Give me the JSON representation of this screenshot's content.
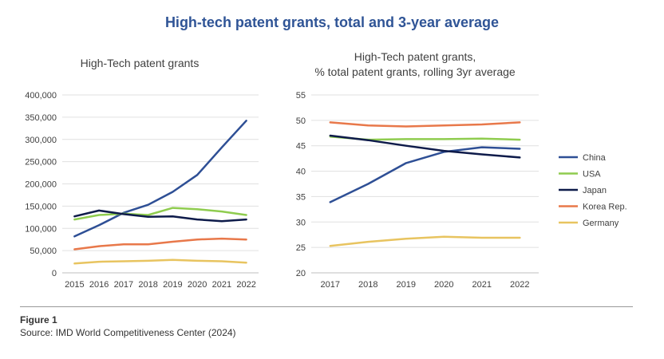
{
  "title": "High-tech patent grants, total and 3-year average",
  "colors": {
    "China": "#2e4f95",
    "USA": "#8fcc4f",
    "Japan": "#0e1b4a",
    "Korea Rep.": "#e8784a",
    "Germany": "#e8c460"
  },
  "legend": [
    "China",
    "USA",
    "Japan",
    "Korea Rep.",
    "Germany"
  ],
  "chart_data": [
    {
      "type": "line",
      "title": "High-Tech patent grants",
      "x": [
        "2015",
        "2016",
        "2017",
        "2018",
        "2019",
        "2020",
        "2021",
        "2022"
      ],
      "ylim": [
        0,
        400000
      ],
      "yticks": [
        "0",
        "50,000",
        "100,000",
        "150,000",
        "200,000",
        "250,000",
        "300,000",
        "350,000",
        "400,000"
      ],
      "grid": true,
      "series": [
        {
          "name": "China",
          "values": [
            82000,
            107000,
            135000,
            153000,
            182000,
            220000,
            282000,
            342000
          ]
        },
        {
          "name": "USA",
          "values": [
            120000,
            130000,
            133000,
            130000,
            146000,
            143000,
            138000,
            130000
          ]
        },
        {
          "name": "Japan",
          "values": [
            127000,
            140000,
            132000,
            126000,
            127000,
            120000,
            116000,
            120000
          ]
        },
        {
          "name": "Korea Rep.",
          "values": [
            53000,
            60000,
            64000,
            64000,
            70000,
            75000,
            77000,
            75000
          ]
        },
        {
          "name": "Germany",
          "values": [
            21000,
            25000,
            26000,
            27000,
            29000,
            27000,
            26000,
            23000
          ]
        }
      ]
    },
    {
      "type": "line",
      "title_lines": [
        "High-Tech patent grants,",
        "% total patent grants, rolling 3yr average"
      ],
      "x": [
        "2017",
        "2018",
        "2019",
        "2020",
        "2021",
        "2022"
      ],
      "ylim": [
        20,
        55
      ],
      "yticks": [
        "20",
        "25",
        "30",
        "35",
        "40",
        "45",
        "50",
        "55"
      ],
      "grid": true,
      "legend_position": "right",
      "series": [
        {
          "name": "China",
          "values": [
            33.9,
            37.5,
            41.6,
            43.8,
            44.7,
            44.4
          ]
        },
        {
          "name": "USA",
          "values": [
            46.8,
            46.2,
            46.3,
            46.3,
            46.4,
            46.2
          ]
        },
        {
          "name": "Japan",
          "values": [
            47.0,
            46.1,
            45.0,
            44.0,
            43.3,
            42.7
          ]
        },
        {
          "name": "Korea Rep.",
          "values": [
            49.6,
            49.0,
            48.8,
            49.0,
            49.2,
            49.6
          ]
        },
        {
          "name": "Germany",
          "values": [
            25.3,
            26.1,
            26.7,
            27.1,
            26.9,
            26.9
          ]
        }
      ]
    }
  ],
  "caption": {
    "figure": "Figure 1",
    "source": "Source: IMD World Competitiveness Center (2024)"
  }
}
